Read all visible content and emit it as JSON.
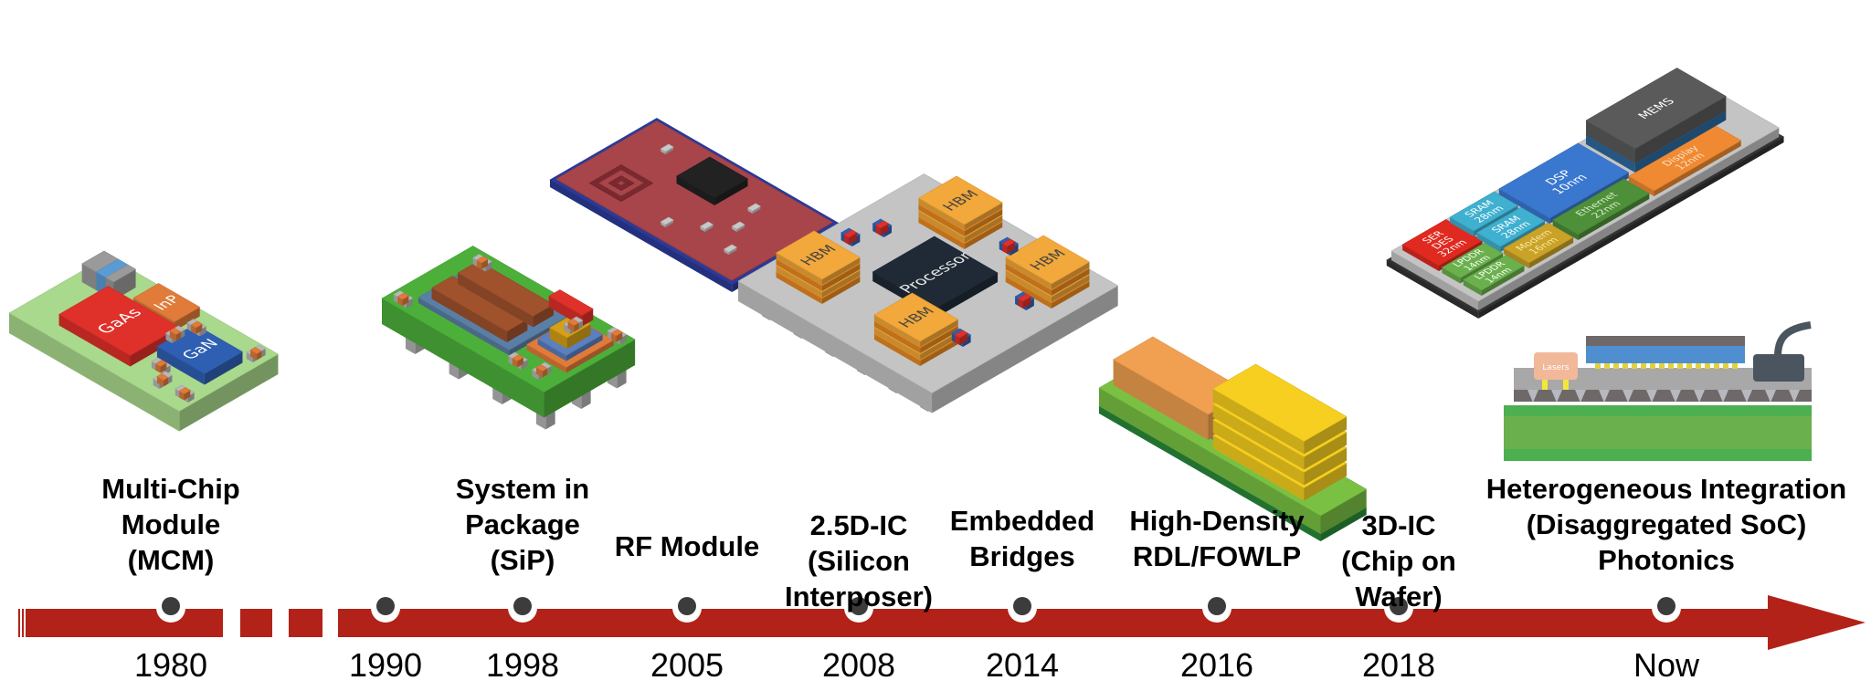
{
  "timeline": [
    {
      "year": "1980",
      "label": [
        "Multi-Chip",
        "Module",
        "(MCM)"
      ]
    },
    {
      "year": "1990",
      "label": []
    },
    {
      "year": "1998",
      "label": [
        "System in",
        "Package",
        "(SiP)"
      ]
    },
    {
      "year": "2005",
      "label": [
        "RF Module"
      ]
    },
    {
      "year": "2008",
      "label": [
        "2.5D-IC",
        "(Silicon",
        "Interposer)"
      ]
    },
    {
      "year": "2014",
      "label": [
        "Embedded",
        "Bridges"
      ]
    },
    {
      "year": "2016",
      "label": [
        "High-Density",
        "RDL/FOWLP"
      ]
    },
    {
      "year": "2018",
      "label": [
        "3D-IC",
        "(Chip on",
        "Wafer)"
      ]
    },
    {
      "year": "Now",
      "label": [
        "Heterogeneous Integration",
        "(Disaggregated SoC)",
        "Photonics"
      ]
    }
  ],
  "chip_labels": {
    "mcm": {
      "gaas": "GaAs",
      "inp": "InP",
      "gan": "GaN"
    },
    "interposer": {
      "hbm": "HBM",
      "processor": "Processor"
    },
    "soc": {
      "serdes": [
        "SER",
        "DES",
        "32nm"
      ],
      "sram": [
        "SRAM",
        "28nm"
      ],
      "lpddr": [
        "LPDDR",
        "14nm"
      ],
      "modem": [
        "Modem",
        "16nm"
      ],
      "dsp": [
        "DSP",
        "10nm"
      ],
      "ethernet": [
        "Ethernet",
        "22nm"
      ],
      "display": [
        "Display",
        "12nm"
      ],
      "mems": [
        "MEMS"
      ]
    },
    "photonics": {
      "lasers": "Lasers"
    }
  },
  "colors": {
    "timeline_arrow": "#b22218",
    "timeline_dot": "#3c3c3c"
  }
}
